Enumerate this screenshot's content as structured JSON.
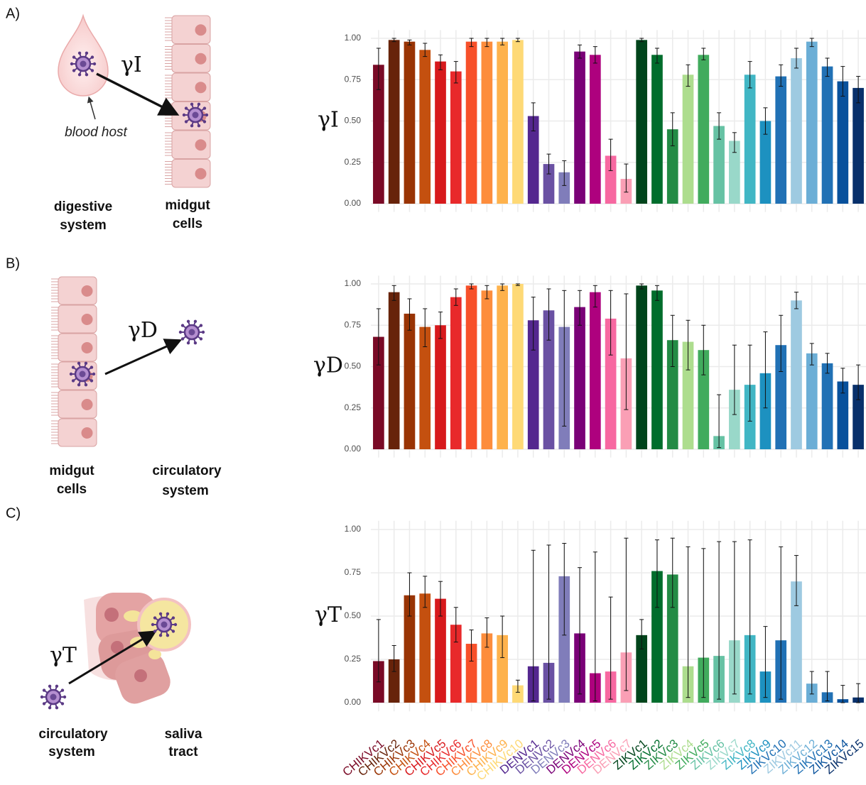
{
  "figure": {
    "panels": [
      {
        "label": "A)",
        "symbol": "γI",
        "note": "blood host",
        "left_label": [
          "digestive",
          "system"
        ],
        "right_label": [
          "midgut",
          "cells"
        ]
      },
      {
        "label": "B)",
        "symbol": "γD",
        "left_label": [
          "midgut",
          "cells"
        ],
        "right_label": [
          "circulatory",
          "system"
        ]
      },
      {
        "label": "C)",
        "symbol": "γT",
        "left_label": [
          "circulatory",
          "system"
        ],
        "right_label": [
          "saliva",
          "tract"
        ]
      }
    ]
  },
  "chart_data": [
    {
      "type": "bar",
      "y_label": "γI",
      "ylim": [
        -0.05,
        1.05
      ],
      "yticks": [
        {
          "value": 0,
          "label": "0.00"
        },
        {
          "value": 0.25,
          "label": "0.25"
        },
        {
          "value": 0.5,
          "label": "0.50"
        },
        {
          "value": 0.75,
          "label": "0.75"
        },
        {
          "value": 1,
          "label": "1.00"
        }
      ],
      "grid": true,
      "colors": [
        "#7a0a26",
        "#67230a",
        "#993404",
        "#c4500f",
        "#d7191c",
        "#e8292b",
        "#f7502a",
        "#fd8d3c",
        "#feb24c",
        "#fed976",
        "#54278f",
        "#6a51a3",
        "#807dba",
        "#7a0177",
        "#ae017e",
        "#f768a1",
        "#fa9fb5",
        "#00441b",
        "#006d2c",
        "#238b45",
        "#addd8e",
        "#41ab5d",
        "#66c2a4",
        "#99d8c9",
        "#41b6c4",
        "#1d91c0",
        "#2171b5",
        "#9ecae1",
        "#6baed6",
        "#2171b5",
        "#08519c",
        "#08306b"
      ],
      "values": [
        0.84,
        0.99,
        0.98,
        0.93,
        0.86,
        0.8,
        0.98,
        0.98,
        0.98,
        0.99,
        0.53,
        0.24,
        0.19,
        0.92,
        0.9,
        0.29,
        0.15,
        0.99,
        0.9,
        0.45,
        0.78,
        0.9,
        0.47,
        0.38,
        0.78,
        0.5,
        0.77,
        0.88,
        0.98,
        0.83,
        0.74,
        0.7
      ],
      "error_low": [
        0.69,
        0.98,
        0.96,
        0.89,
        0.81,
        0.73,
        0.95,
        0.95,
        0.96,
        0.98,
        0.44,
        0.18,
        0.11,
        0.88,
        0.85,
        0.2,
        0.07,
        0.98,
        0.85,
        0.35,
        0.71,
        0.87,
        0.39,
        0.31,
        0.7,
        0.42,
        0.71,
        0.82,
        0.95,
        0.77,
        0.65,
        0.61
      ],
      "error_high": [
        0.94,
        1.0,
        0.99,
        0.97,
        0.9,
        0.86,
        1.0,
        1.0,
        1.0,
        1.0,
        0.61,
        0.3,
        0.26,
        0.96,
        0.95,
        0.39,
        0.24,
        1.0,
        0.94,
        0.55,
        0.84,
        0.94,
        0.55,
        0.43,
        0.86,
        0.58,
        0.84,
        0.94,
        1.0,
        0.88,
        0.83,
        0.77
      ]
    },
    {
      "type": "bar",
      "y_label": "γD",
      "ylim": [
        -0.05,
        1.05
      ],
      "yticks": [
        {
          "value": 0,
          "label": "0.00"
        },
        {
          "value": 0.25,
          "label": "0.25"
        },
        {
          "value": 0.5,
          "label": "0.50"
        },
        {
          "value": 0.75,
          "label": "0.75"
        },
        {
          "value": 1,
          "label": "1.00"
        }
      ],
      "grid": true,
      "colors": [
        "#7a0a26",
        "#67230a",
        "#993404",
        "#c4500f",
        "#d7191c",
        "#e8292b",
        "#f7502a",
        "#fd8d3c",
        "#feb24c",
        "#fed976",
        "#54278f",
        "#6a51a3",
        "#807dba",
        "#7a0177",
        "#ae017e",
        "#f768a1",
        "#fa9fb5",
        "#00441b",
        "#006d2c",
        "#238b45",
        "#addd8e",
        "#41ab5d",
        "#66c2a4",
        "#99d8c9",
        "#41b6c4",
        "#1d91c0",
        "#2171b5",
        "#9ecae1",
        "#6baed6",
        "#2171b5",
        "#08519c",
        "#08306b"
      ],
      "values": [
        0.68,
        0.95,
        0.82,
        0.74,
        0.75,
        0.92,
        0.99,
        0.96,
        0.99,
        1.0,
        0.78,
        0.84,
        0.74,
        0.86,
        0.95,
        0.79,
        0.55,
        0.99,
        0.96,
        0.66,
        0.65,
        0.6,
        0.08,
        0.36,
        0.39,
        0.46,
        0.63,
        0.9,
        0.58,
        0.52,
        0.41,
        0.39
      ],
      "error_low": [
        0.51,
        0.9,
        0.72,
        0.62,
        0.67,
        0.87,
        0.97,
        0.91,
        0.96,
        0.99,
        0.6,
        0.66,
        0.14,
        0.75,
        0.86,
        0.57,
        0.24,
        0.97,
        0.9,
        0.5,
        0.48,
        0.45,
        0.01,
        0.21,
        0.17,
        0.25,
        0.47,
        0.85,
        0.51,
        0.46,
        0.34,
        0.3
      ],
      "error_high": [
        0.85,
        0.99,
        0.91,
        0.85,
        0.83,
        0.97,
        1.0,
        0.99,
        1.0,
        1.0,
        0.92,
        0.97,
        0.96,
        0.96,
        0.99,
        0.96,
        0.94,
        1.0,
        0.99,
        0.81,
        0.78,
        0.75,
        0.33,
        0.63,
        0.63,
        0.71,
        0.81,
        0.95,
        0.64,
        0.58,
        0.49,
        0.51
      ]
    },
    {
      "type": "bar",
      "y_label": "γT",
      "ylim": [
        -0.05,
        1.05
      ],
      "yticks": [
        {
          "value": 0,
          "label": "0.00"
        },
        {
          "value": 0.25,
          "label": "0.25"
        },
        {
          "value": 0.5,
          "label": "0.50"
        },
        {
          "value": 0.75,
          "label": "0.75"
        },
        {
          "value": 1,
          "label": "1.00"
        }
      ],
      "grid": true,
      "categories": [
        "CHIKVc1",
        "CHIKVc2",
        "CHIKVc3",
        "CHIKVc4",
        "CHIKVc5",
        "CHIKVc6",
        "CHIKVc7",
        "CHIKVc8",
        "CHIKVc9",
        "CHIKVc10",
        "DENVc1",
        "DENVc2",
        "DENVc3",
        "DENVc4",
        "DENVc5",
        "DENVc6",
        "DENVc7",
        "ZIKVc1",
        "ZIKVc2",
        "ZIKVc3",
        "ZIKVc4",
        "ZIKVc5",
        "ZIKVc6",
        "ZIKVc7",
        "ZIKVc8",
        "ZIKVc9",
        "ZIKVc10",
        "ZIKVc11",
        "ZIKVc12",
        "ZIKVc13",
        "ZIKVc14",
        "ZIKVc15"
      ],
      "colors": [
        "#7a0a26",
        "#67230a",
        "#993404",
        "#c4500f",
        "#d7191c",
        "#e8292b",
        "#f7502a",
        "#fd8d3c",
        "#feb24c",
        "#fed976",
        "#54278f",
        "#6a51a3",
        "#807dba",
        "#7a0177",
        "#ae017e",
        "#f768a1",
        "#fa9fb5",
        "#00441b",
        "#006d2c",
        "#238b45",
        "#addd8e",
        "#41ab5d",
        "#66c2a4",
        "#99d8c9",
        "#41b6c4",
        "#1d91c0",
        "#2171b5",
        "#9ecae1",
        "#6baed6",
        "#2171b5",
        "#08519c",
        "#08306b"
      ],
      "values": [
        0.24,
        0.25,
        0.62,
        0.63,
        0.6,
        0.45,
        0.34,
        0.4,
        0.39,
        0.1,
        0.21,
        0.23,
        0.73,
        0.4,
        0.17,
        0.18,
        0.29,
        0.39,
        0.76,
        0.74,
        0.21,
        0.26,
        0.27,
        0.36,
        0.39,
        0.18,
        0.36,
        0.7,
        0.11,
        0.06,
        0.02,
        0.03
      ],
      "error_low": [
        0.12,
        0.18,
        0.5,
        0.55,
        0.5,
        0.35,
        0.24,
        0.32,
        0.26,
        0.06,
        0.01,
        0.02,
        0.39,
        0.05,
        0.01,
        0.02,
        0.07,
        0.31,
        0.55,
        0.55,
        0.03,
        0.03,
        0.02,
        0.05,
        0.05,
        0.03,
        0.02,
        0.56,
        0.05,
        0.01,
        0.0,
        0.0
      ],
      "error_high": [
        0.48,
        0.33,
        0.75,
        0.73,
        0.7,
        0.55,
        0.42,
        0.49,
        0.5,
        0.13,
        0.88,
        0.91,
        0.92,
        0.78,
        0.87,
        0.61,
        0.95,
        0.48,
        0.94,
        0.95,
        0.9,
        0.89,
        0.93,
        0.93,
        0.94,
        0.44,
        0.9,
        0.85,
        0.18,
        0.18,
        0.1,
        0.11
      ]
    }
  ]
}
